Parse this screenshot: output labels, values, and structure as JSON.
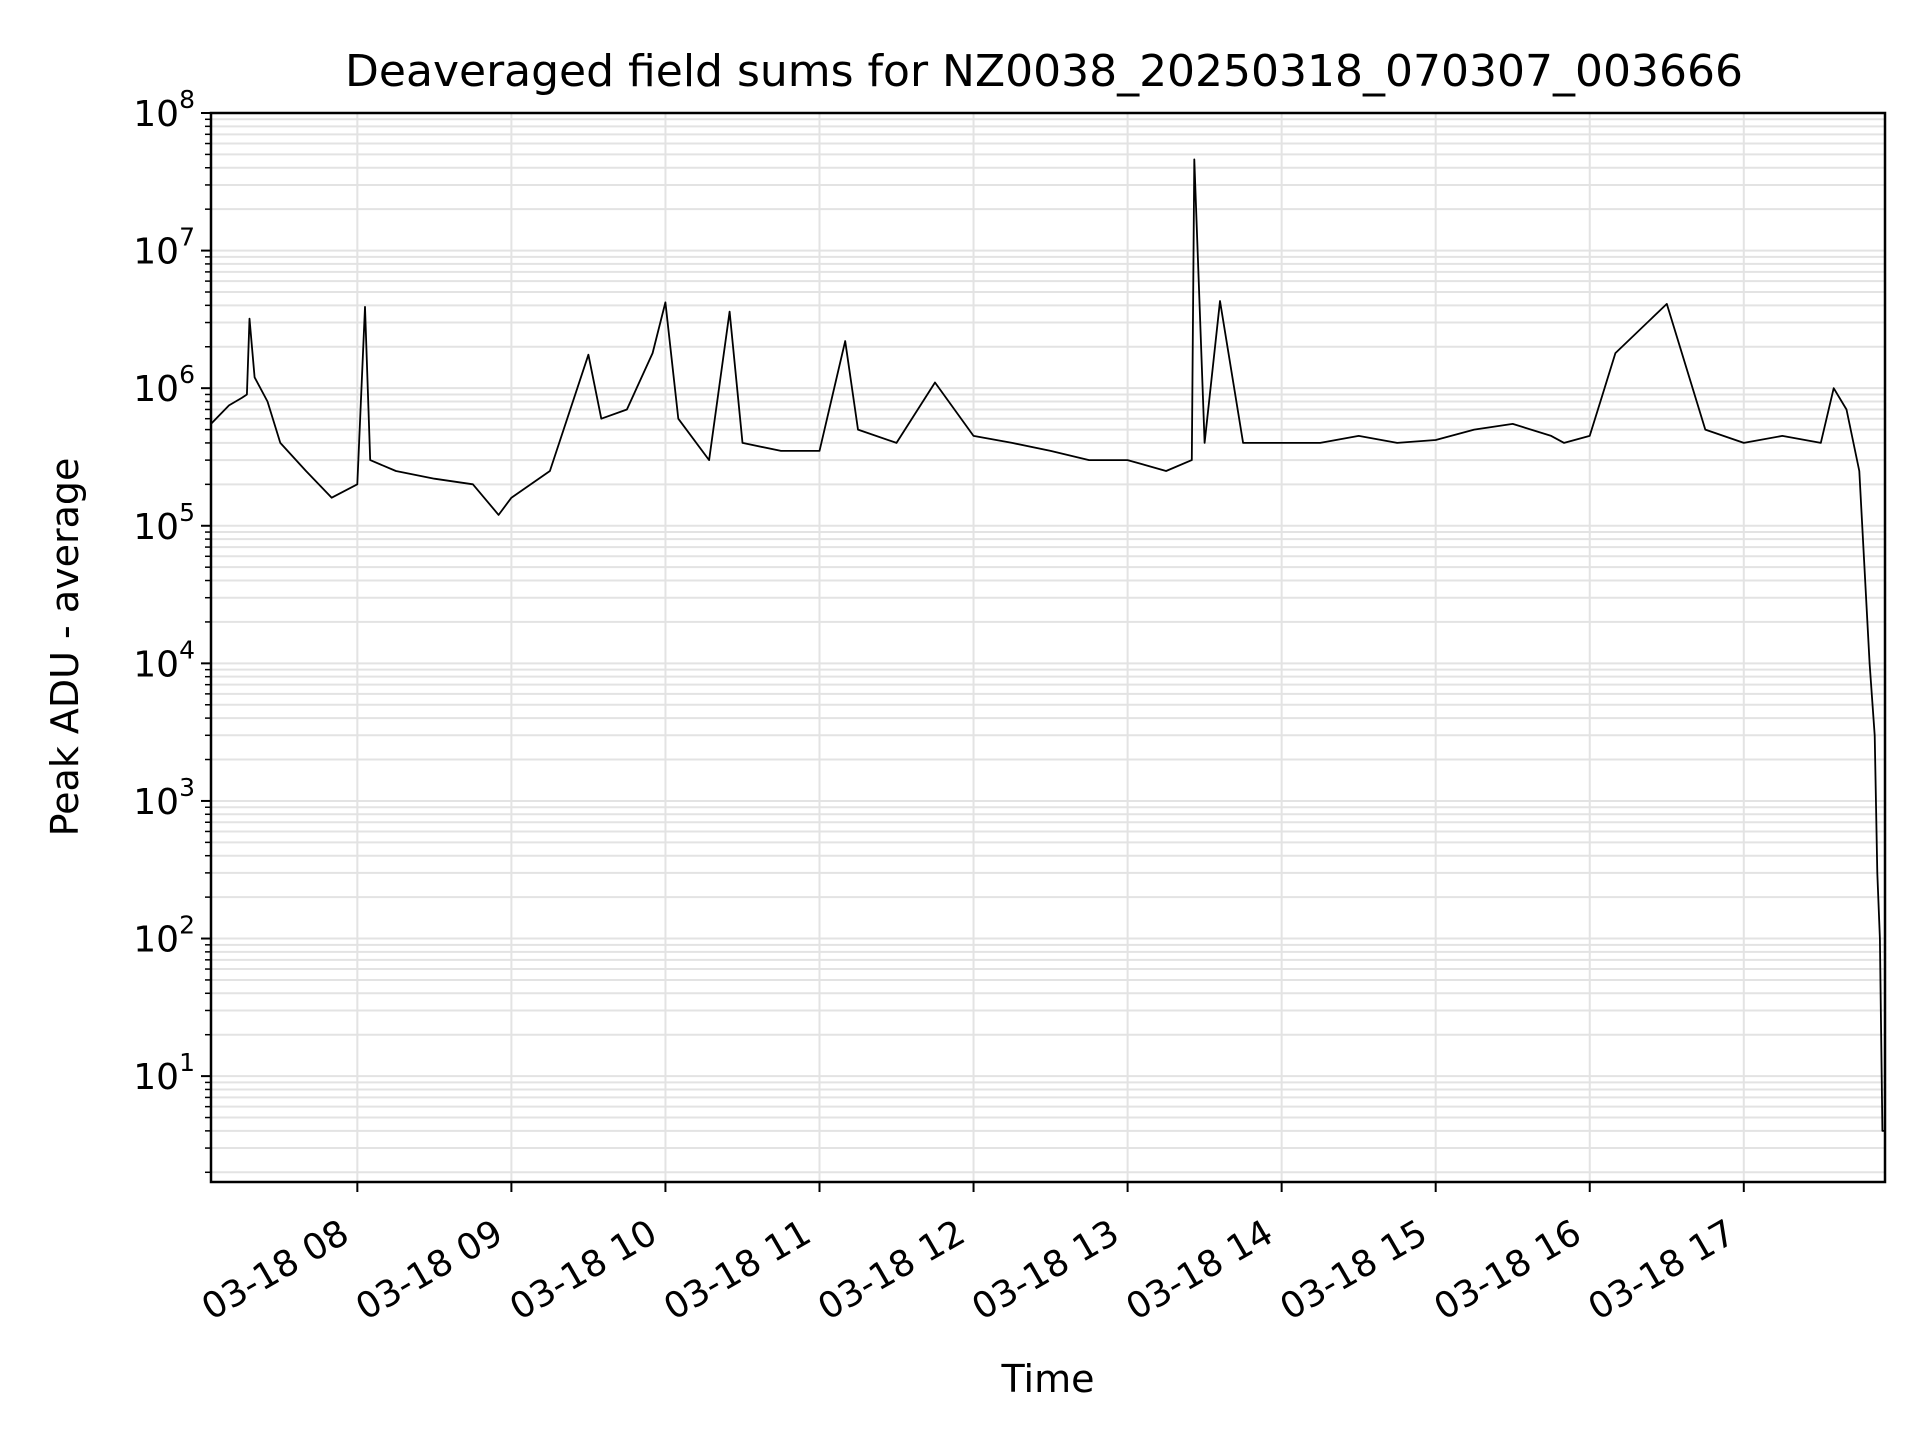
{
  "chart_data": {
    "type": "line",
    "title": "Deaveraged field sums for NZ0038_20250318_070307_003666",
    "xlabel": "Time",
    "ylabel": "Peak ADU - average",
    "y_scale": "log",
    "ylim": [
      1.7,
      100000000
    ],
    "xlim": [
      "2025-03-18 07:03",
      "2025-03-18 17:55"
    ],
    "grid": true,
    "line_color": "#000000",
    "grid_color": "#e3e3e3",
    "x_ticks": [
      {
        "value": "2025-03-18 08:00",
        "label": "03-18 08"
      },
      {
        "value": "2025-03-18 09:00",
        "label": "03-18 09"
      },
      {
        "value": "2025-03-18 10:00",
        "label": "03-18 10"
      },
      {
        "value": "2025-03-18 11:00",
        "label": "03-18 11"
      },
      {
        "value": "2025-03-18 12:00",
        "label": "03-18 12"
      },
      {
        "value": "2025-03-18 13:00",
        "label": "03-18 13"
      },
      {
        "value": "2025-03-18 14:00",
        "label": "03-18 14"
      },
      {
        "value": "2025-03-18 15:00",
        "label": "03-18 15"
      },
      {
        "value": "2025-03-18 16:00",
        "label": "03-18 16"
      },
      {
        "value": "2025-03-18 17:00",
        "label": "03-18 17"
      }
    ],
    "y_ticks": [
      {
        "value": 10,
        "base": "10",
        "exp": "1"
      },
      {
        "value": 100,
        "base": "10",
        "exp": "2"
      },
      {
        "value": 1000,
        "base": "10",
        "exp": "3"
      },
      {
        "value": 10000,
        "base": "10",
        "exp": "4"
      },
      {
        "value": 100000,
        "base": "10",
        "exp": "5"
      },
      {
        "value": 1000000,
        "base": "10",
        "exp": "6"
      },
      {
        "value": 10000000,
        "base": "10",
        "exp": "7"
      },
      {
        "value": 100000000,
        "base": "10",
        "exp": "8"
      }
    ],
    "series": [
      {
        "x": [
          "2025-03-18 07:03",
          "2025-03-18 07:10",
          "2025-03-18 07:15",
          "2025-03-18 07:17",
          "2025-03-18 07:18",
          "2025-03-18 07:20",
          "2025-03-18 07:25",
          "2025-03-18 07:30",
          "2025-03-18 07:40",
          "2025-03-18 07:50",
          "2025-03-18 08:00",
          "2025-03-18 08:03",
          "2025-03-18 08:05",
          "2025-03-18 08:15",
          "2025-03-18 08:30",
          "2025-03-18 08:45",
          "2025-03-18 08:55",
          "2025-03-18 09:00",
          "2025-03-18 09:15",
          "2025-03-18 09:30",
          "2025-03-18 09:35",
          "2025-03-18 09:45",
          "2025-03-18 09:55",
          "2025-03-18 10:00",
          "2025-03-18 10:05",
          "2025-03-18 10:17",
          "2025-03-18 10:25",
          "2025-03-18 10:30",
          "2025-03-18 10:45",
          "2025-03-18 11:00",
          "2025-03-18 11:10",
          "2025-03-18 11:15",
          "2025-03-18 11:30",
          "2025-03-18 11:45",
          "2025-03-18 12:00",
          "2025-03-18 12:15",
          "2025-03-18 12:30",
          "2025-03-18 12:45",
          "2025-03-18 13:00",
          "2025-03-18 13:15",
          "2025-03-18 13:25",
          "2025-03-18 13:26",
          "2025-03-18 13:30",
          "2025-03-18 13:36",
          "2025-03-18 13:45",
          "2025-03-18 14:00",
          "2025-03-18 14:15",
          "2025-03-18 14:30",
          "2025-03-18 14:45",
          "2025-03-18 15:00",
          "2025-03-18 15:15",
          "2025-03-18 15:30",
          "2025-03-18 15:45",
          "2025-03-18 15:50",
          "2025-03-18 16:00",
          "2025-03-18 16:05",
          "2025-03-18 16:10",
          "2025-03-18 16:30",
          "2025-03-18 16:45",
          "2025-03-18 17:00",
          "2025-03-18 17:15",
          "2025-03-18 17:30",
          "2025-03-18 17:35",
          "2025-03-18 17:40",
          "2025-03-18 17:45",
          "2025-03-18 17:49",
          "2025-03-18 17:51",
          "2025-03-18 17:52",
          "2025-03-18 17:53",
          "2025-03-18 17:54",
          "2025-03-18 17:55"
        ],
        "y": [
          550000,
          750000,
          850000,
          900000,
          3200000,
          1200000,
          800000,
          400000,
          250000,
          160000,
          200000,
          3900000,
          300000,
          250000,
          220000,
          200000,
          120000,
          160000,
          250000,
          1750000,
          600000,
          700000,
          1800000,
          4200000,
          600000,
          300000,
          3600000,
          400000,
          350000,
          350000,
          2200000,
          500000,
          400000,
          1100000,
          450000,
          400000,
          350000,
          300000,
          300000,
          250000,
          300000,
          46000000,
          400000,
          4300000,
          400000,
          400000,
          400000,
          450000,
          400000,
          420000,
          500000,
          550000,
          450000,
          400000,
          450000,
          900000,
          1800000,
          4100000,
          500000,
          400000,
          450000,
          400000,
          1000000,
          700000,
          250000,
          10000,
          3000,
          300,
          100,
          4,
          4
        ]
      }
    ]
  }
}
